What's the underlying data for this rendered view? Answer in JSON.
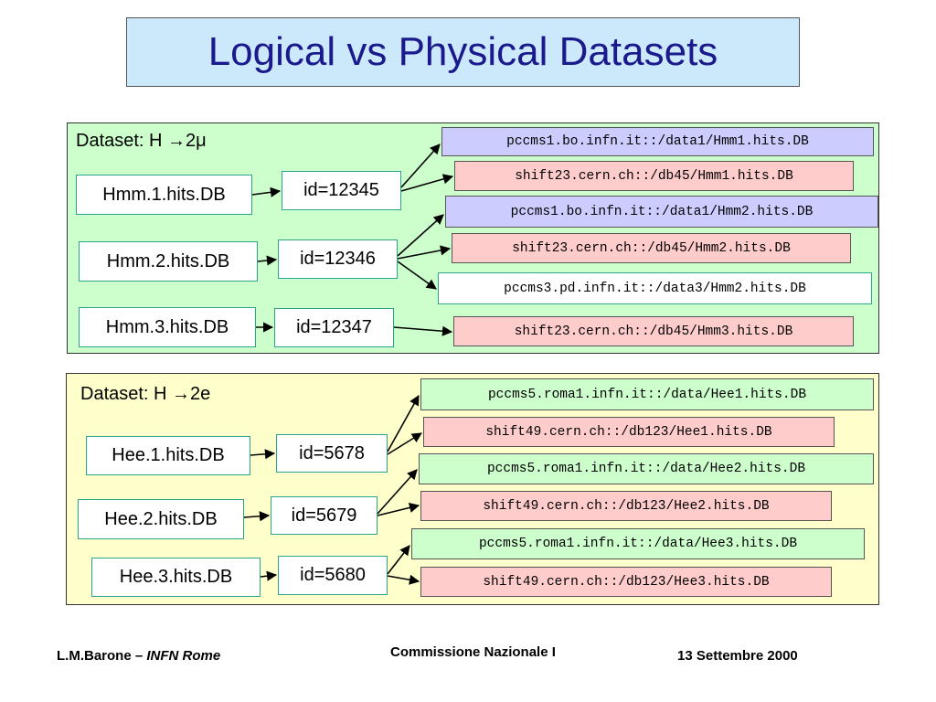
{
  "title": "Logical vs Physical Datasets",
  "datasets": [
    {
      "label": "Dataset: H →2μ",
      "logical": [
        "Hmm.1.hits.DB",
        "Hmm.2.hits.DB",
        "Hmm.3.hits.DB"
      ],
      "ids": [
        "id=12345",
        "id=12346",
        "id=12347"
      ],
      "physical": [
        "pccms1.bo.infn.it::/data1/Hmm1.hits.DB",
        "shift23.cern.ch::/db45/Hmm1.hits.DB",
        "pccms1.bo.infn.it::/data1/Hmm2.hits.DB",
        "shift23.cern.ch::/db45/Hmm2.hits.DB",
        "pccms3.pd.infn.it::/data3/Hmm2.hits.DB",
        "shift23.cern.ch::/db45/Hmm3.hits.DB"
      ]
    },
    {
      "label": "Dataset: H →2e",
      "logical": [
        "Hee.1.hits.DB",
        "Hee.2.hits.DB",
        "Hee.3.hits.DB"
      ],
      "ids": [
        "id=5678",
        "id=5679",
        "id=5680"
      ],
      "physical": [
        "pccms5.roma1.infn.it::/data/Hee1.hits.DB",
        "shift49.cern.ch::/db123/Hee1.hits.DB",
        "pccms5.roma1.infn.it::/data/Hee2.hits.DB",
        "shift49.cern.ch::/db123/Hee2.hits.DB",
        "pccms5.roma1.infn.it::/data/Hee3.hits.DB",
        "shift49.cern.ch::/db123/Hee3.hits.DB"
      ]
    }
  ],
  "colors": {
    "title_bg": "#cce8fb",
    "panel_mu_bg": "#ccffcc",
    "panel_e_bg": "#ffffcc",
    "blue_box": "#ccccff",
    "pink_box": "#ffcccc",
    "green_box": "#ccffcc"
  },
  "footer": {
    "author": "L.M.Barone",
    "separator": " – ",
    "affiliation": "INFN Rome",
    "event": "Commissione Nazionale I",
    "date": "13 Settembre 2000"
  }
}
